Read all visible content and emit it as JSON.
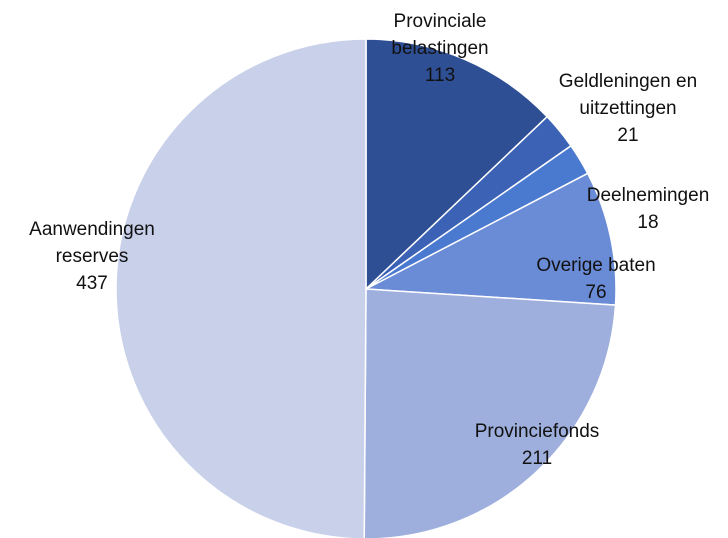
{
  "chart_data": {
    "type": "pie",
    "categories": [
      "Provinciale belastingen",
      "Geldleningen en uitzettingen",
      "Deelnemingen",
      "Overige baten",
      "Provinciefonds",
      "Aanwendingen reserves"
    ],
    "values": [
      113,
      21,
      18,
      76,
      211,
      437
    ],
    "colors": [
      "#2f4f94",
      "#3b62b4",
      "#4a79d0",
      "#6a8bd6",
      "#9eafdd",
      "#c8d0ea"
    ]
  }
}
